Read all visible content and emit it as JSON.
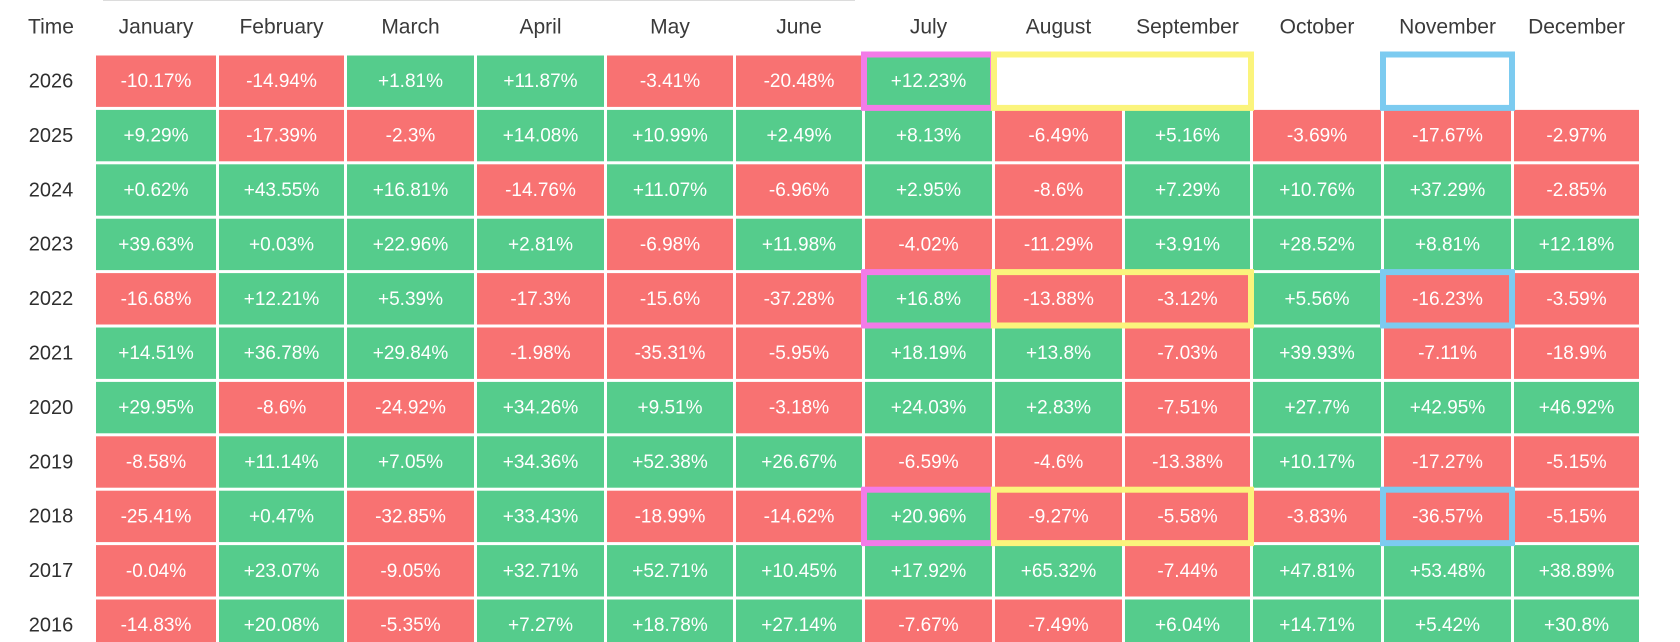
{
  "chart_data": {
    "type": "heatmap",
    "corner_label": "Time",
    "columns": [
      "January",
      "February",
      "March",
      "April",
      "May",
      "June",
      "July",
      "August",
      "September",
      "October",
      "November",
      "December"
    ],
    "rows": [
      {
        "year": "2026",
        "values": [
          "-10.17%",
          "-14.94%",
          "+1.81%",
          "+11.87%",
          "-3.41%",
          "-20.48%",
          "+12.23%",
          null,
          null,
          null,
          null,
          null
        ]
      },
      {
        "year": "2025",
        "values": [
          "+9.29%",
          "-17.39%",
          "-2.3%",
          "+14.08%",
          "+10.99%",
          "+2.49%",
          "+8.13%",
          "-6.49%",
          "+5.16%",
          "-3.69%",
          "-17.67%",
          "-2.97%"
        ]
      },
      {
        "year": "2024",
        "values": [
          "+0.62%",
          "+43.55%",
          "+16.81%",
          "-14.76%",
          "+11.07%",
          "-6.96%",
          "+2.95%",
          "-8.6%",
          "+7.29%",
          "+10.76%",
          "+37.29%",
          "-2.85%"
        ]
      },
      {
        "year": "2023",
        "values": [
          "+39.63%",
          "+0.03%",
          "+22.96%",
          "+2.81%",
          "-6.98%",
          "+11.98%",
          "-4.02%",
          "-11.29%",
          "+3.91%",
          "+28.52%",
          "+8.81%",
          "+12.18%"
        ]
      },
      {
        "year": "2022",
        "values": [
          "-16.68%",
          "+12.21%",
          "+5.39%",
          "-17.3%",
          "-15.6%",
          "-37.28%",
          "+16.8%",
          "-13.88%",
          "-3.12%",
          "+5.56%",
          "-16.23%",
          "-3.59%"
        ]
      },
      {
        "year": "2021",
        "values": [
          "+14.51%",
          "+36.78%",
          "+29.84%",
          "-1.98%",
          "-35.31%",
          "-5.95%",
          "+18.19%",
          "+13.8%",
          "-7.03%",
          "+39.93%",
          "-7.11%",
          "-18.9%"
        ]
      },
      {
        "year": "2020",
        "values": [
          "+29.95%",
          "-8.6%",
          "-24.92%",
          "+34.26%",
          "+9.51%",
          "-3.18%",
          "+24.03%",
          "+2.83%",
          "-7.51%",
          "+27.7%",
          "+42.95%",
          "+46.92%"
        ]
      },
      {
        "year": "2019",
        "values": [
          "-8.58%",
          "+11.14%",
          "+7.05%",
          "+34.36%",
          "+52.38%",
          "+26.67%",
          "-6.59%",
          "-4.6%",
          "-13.38%",
          "+10.17%",
          "-17.27%",
          "-5.15%"
        ]
      },
      {
        "year": "2018",
        "values": [
          "-25.41%",
          "+0.47%",
          "-32.85%",
          "+33.43%",
          "-18.99%",
          "-14.62%",
          "+20.96%",
          "-9.27%",
          "-5.58%",
          "-3.83%",
          "-36.57%",
          "-5.15%"
        ]
      },
      {
        "year": "2017",
        "values": [
          "-0.04%",
          "+23.07%",
          "-9.05%",
          "+32.71%",
          "+52.71%",
          "+10.45%",
          "+17.92%",
          "+65.32%",
          "-7.44%",
          "+47.81%",
          "+53.48%",
          "+38.89%"
        ]
      },
      {
        "year": "2016",
        "values": [
          "-14.83%",
          "+20.08%",
          "-5.35%",
          "+7.27%",
          "+18.78%",
          "+27.14%",
          "-7.67%",
          "-7.49%",
          "+6.04%",
          "+14.71%",
          "+5.42%",
          "+30.8%"
        ]
      }
    ],
    "colors": {
      "positive": "#55cc8c",
      "negative": "#f87272",
      "highlight_magenta": "#f37be8",
      "highlight_yellow": "#fbf47c",
      "highlight_blue": "#7ccbf0"
    },
    "highlights": [
      {
        "color": "highlight_magenta",
        "cells": [
          {
            "year": "2026",
            "month": "July"
          },
          {
            "year": "2022",
            "month": "July"
          },
          {
            "year": "2018",
            "month": "July"
          }
        ]
      },
      {
        "color": "highlight_yellow",
        "cells": [
          {
            "year": "2026",
            "month": "August",
            "month_end": "September"
          },
          {
            "year": "2022",
            "month": "August",
            "month_end": "September"
          },
          {
            "year": "2018",
            "month": "August",
            "month_end": "September"
          }
        ]
      },
      {
        "color": "highlight_blue",
        "cells": [
          {
            "year": "2026",
            "month": "November"
          },
          {
            "year": "2022",
            "month": "November"
          },
          {
            "year": "2018",
            "month": "November"
          }
        ]
      }
    ]
  }
}
